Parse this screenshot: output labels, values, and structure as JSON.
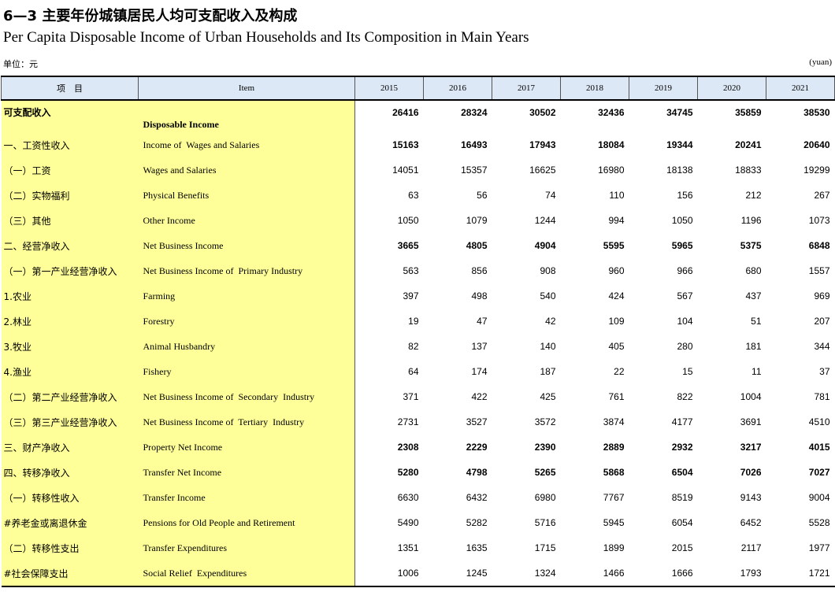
{
  "header": {
    "title": "6—3 主要年份城镇居民人均可支配收入及构成",
    "subtitle": "Per Capita Disposable Income of Urban Households and Its Composition in Main Years",
    "unit_cn": "单位：元",
    "unit_en": "(yuan)"
  },
  "table": {
    "columns": [
      "项　目",
      "Item",
      "2015",
      "2016",
      "2017",
      "2018",
      "2019",
      "2020",
      "2021"
    ],
    "rows": [
      {
        "cn": "可支配收入",
        "en": "Disposable Income",
        "bold": true,
        "values": [
          26416,
          28324,
          30502,
          32436,
          34745,
          35859,
          38530
        ]
      },
      {
        "cn": "一、工资性收入",
        "en": "Income of  Wages and Salaries",
        "bold": true,
        "values": [
          15163,
          16493,
          17943,
          18084,
          19344,
          20241,
          20640
        ]
      },
      {
        "cn": "（一）工资",
        "en": "Wages and Salaries",
        "bold": false,
        "values": [
          14051,
          15357,
          16625,
          16980,
          18138,
          18833,
          19299
        ]
      },
      {
        "cn": "（二）实物福利",
        "en": "Physical Benefits",
        "bold": false,
        "values": [
          63,
          56,
          74,
          110,
          156,
          212,
          267
        ]
      },
      {
        "cn": "（三）其他",
        "en": "Other Income",
        "bold": false,
        "values": [
          1050,
          1079,
          1244,
          994,
          1050,
          1196,
          1073
        ]
      },
      {
        "cn": "二、经营净收入",
        "en": "Net Business Income",
        "bold": true,
        "values": [
          3665,
          4805,
          4904,
          5595,
          5965,
          5375,
          6848
        ]
      },
      {
        "cn": "（一）第一产业经营净收入",
        "en": "Net Business Income of  Primary Industry",
        "bold": false,
        "values": [
          563,
          856,
          908,
          960,
          966,
          680,
          1557
        ]
      },
      {
        "cn": "1.农业",
        "en": "Farming",
        "bold": false,
        "values": [
          397,
          498,
          540,
          424,
          567,
          437,
          969
        ]
      },
      {
        "cn": "2.林业",
        "en": "Forestry",
        "bold": false,
        "values": [
          19,
          47,
          42,
          109,
          104,
          51,
          207
        ]
      },
      {
        "cn": "3.牧业",
        "en": "Animal Husbandry",
        "bold": false,
        "values": [
          82,
          137,
          140,
          405,
          280,
          181,
          344
        ]
      },
      {
        "cn": "4.渔业",
        "en": "Fishery",
        "bold": false,
        "values": [
          64,
          174,
          187,
          22,
          15,
          11,
          37
        ]
      },
      {
        "cn": "（二）第二产业经营净收入",
        "en": "Net Business Income of  Secondary  Industry",
        "bold": false,
        "values": [
          371,
          422,
          425,
          761,
          822,
          1004,
          781
        ]
      },
      {
        "cn": "（三）第三产业经营净收入",
        "en": "Net Business Income of  Tertiary  Industry",
        "bold": false,
        "values": [
          2731,
          3527,
          3572,
          3874,
          4177,
          3691,
          4510
        ]
      },
      {
        "cn": "三、财产净收入",
        "en": "Property Net Income",
        "bold": true,
        "values": [
          2308,
          2229,
          2390,
          2889,
          2932,
          3217,
          4015
        ]
      },
      {
        "cn": "四、转移净收入",
        "en": "Transfer Net Income",
        "bold": true,
        "values": [
          5280,
          4798,
          5265,
          5868,
          6504,
          7026,
          7027
        ]
      },
      {
        "cn": "（一）转移性收入",
        "en": "Transfer Income",
        "bold": false,
        "values": [
          6630,
          6432,
          6980,
          7767,
          8519,
          9143,
          9004
        ]
      },
      {
        "cn": "#养老金或离退休金",
        "en": "Pensions for Old People and Retirement",
        "bold": false,
        "values": [
          5490,
          5282,
          5716,
          5945,
          6054,
          6452,
          5528
        ]
      },
      {
        "cn": "（二）转移性支出",
        "en": "Transfer Expenditures",
        "bold": false,
        "values": [
          1351,
          1635,
          1715,
          1899,
          2015,
          2117,
          1977
        ]
      },
      {
        "cn": "#社会保障支出",
        "en": "Social Relief  Expenditures",
        "bold": false,
        "values": [
          1006,
          1245,
          1324,
          1466,
          1666,
          1793,
          1721
        ]
      }
    ]
  }
}
